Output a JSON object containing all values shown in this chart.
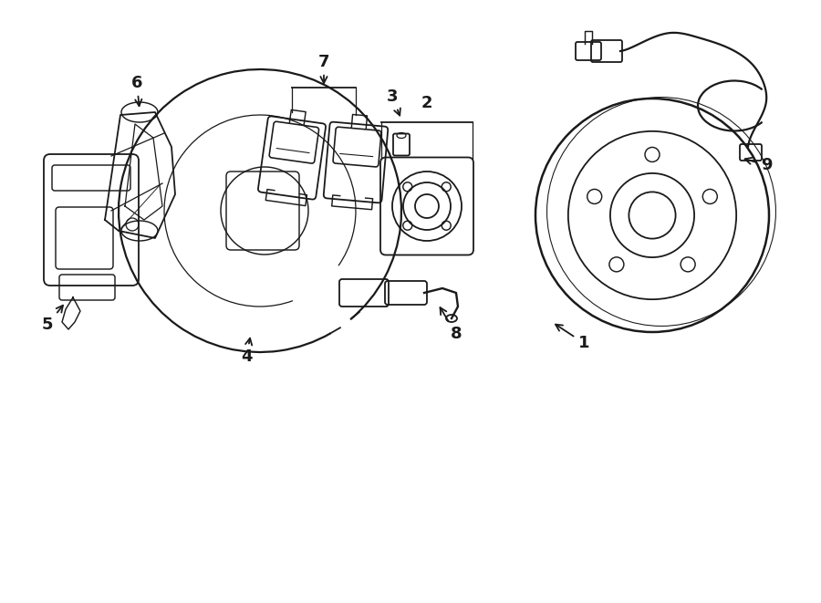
{
  "bg_color": "#ffffff",
  "line_color": "#1a1a1a",
  "line_width": 1.3,
  "fig_width": 9.0,
  "fig_height": 6.61
}
